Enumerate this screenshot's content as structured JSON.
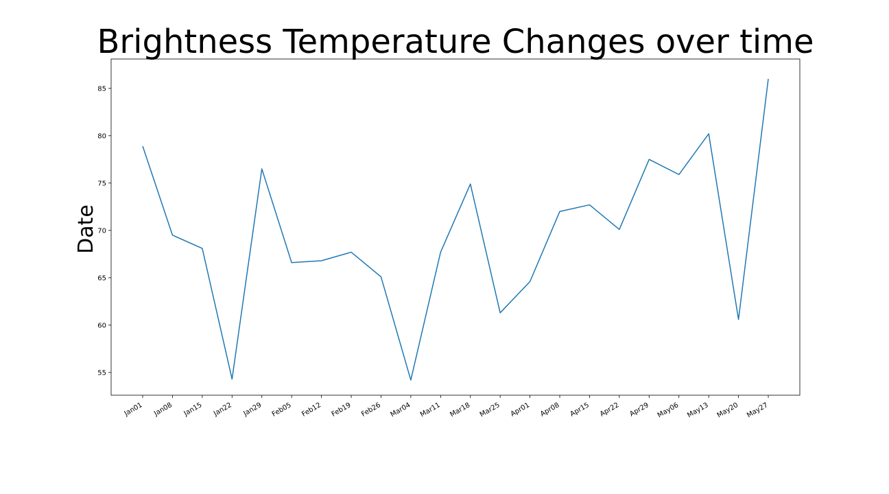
{
  "chart_data": {
    "type": "line",
    "title": "Brightness Temperature Changes over time",
    "xlabel": "",
    "ylabel": "Date",
    "categories": [
      "Jan01",
      "Jan08",
      "Jan15",
      "Jan22",
      "Jan29",
      "Feb05",
      "Feb12",
      "Feb19",
      "Feb26",
      "Mar04",
      "Mar11",
      "Mar18",
      "Mar25",
      "Apr01",
      "Apr08",
      "Apr15",
      "Apr22",
      "Apr29",
      "May06",
      "May13",
      "May20",
      "May27"
    ],
    "series": [
      {
        "color": "#1f77b4",
        "values": [
          78.9,
          69.5,
          68.1,
          54.3,
          76.5,
          66.6,
          66.8,
          67.7,
          65.1,
          54.2,
          67.7,
          74.9,
          61.3,
          64.6,
          72.0,
          72.7,
          70.1,
          77.5,
          75.9,
          80.2,
          60.6,
          86.0
        ]
      }
    ],
    "ylim": [
      52.6,
      88.1
    ],
    "yticks": [
      55,
      60,
      65,
      70,
      75,
      80,
      85
    ],
    "grid": false,
    "legend": "none"
  }
}
